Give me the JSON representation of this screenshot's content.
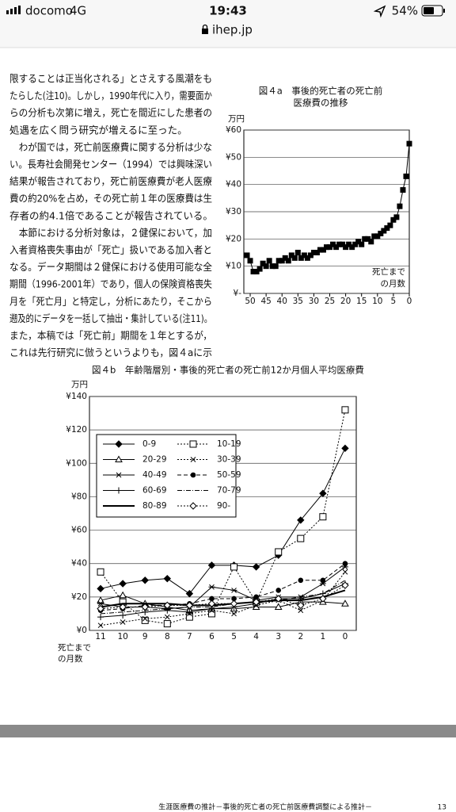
{
  "status_bar": {
    "carrier": "docomo",
    "network": "4G",
    "time": "19:43",
    "battery": "54%",
    "url": "ihep.jp"
  },
  "body": {
    "lines": [
      "限することは正当化される」とさえする風潮をも",
      "たらした(注10)。しかし，1990年代に入り，需要面か",
      "らの分析も次第に増え，死亡を間近にした患者の",
      "処遇を広く問う研究が増えるに至った。",
      "　わが国では，死亡前医療費に関する分析は少な",
      "い。長寿社会開発センター（1994）では興味深い",
      "結果が報告されており，死亡前医療費が老人医療",
      "費の約20%を占め，その死亡前１年の医療費は生",
      "存者の約4.1倍であることが報告されている。",
      "　本節における分析対象は，２健保において，加",
      "入者資格喪失事由が「死亡」扱いである加入者と",
      "なる。データ期間は２健保における使用可能な全",
      "期間（1996-2001年）であり，個人の保険資格喪失",
      "月を「死亡月」と特定し，分析にあたり，そこから",
      "遡及的にデータを一括して抽出・集計している(注11)。",
      "また，本稿では「死亡前」期間を１年とするが，",
      "これは先行研究に倣うというよりも，図４aに示"
    ]
  },
  "chart_data": [
    {
      "type": "line",
      "title": [
        "図４a　事後的死亡者の死亡前",
        "医療費の推移"
      ],
      "y_unit": "万円",
      "annotation": [
        "死亡まで",
        "の月数"
      ],
      "x": [
        51,
        50,
        49,
        48,
        47,
        46,
        45,
        44,
        43,
        42,
        41,
        40,
        39,
        38,
        37,
        36,
        35,
        34,
        33,
        32,
        31,
        30,
        29,
        28,
        27,
        26,
        25,
        24,
        23,
        22,
        21,
        20,
        19,
        18,
        17,
        16,
        15,
        14,
        13,
        12,
        11,
        10,
        9,
        8,
        7,
        6,
        5,
        4,
        3,
        2,
        1,
        0
      ],
      "values": [
        14,
        12,
        8,
        8,
        9,
        11,
        10,
        12,
        10,
        10,
        12,
        12,
        13,
        12,
        14,
        13,
        15,
        13,
        14,
        13,
        14,
        15,
        15,
        16,
        16,
        17,
        17,
        18,
        17,
        18,
        18,
        17,
        18,
        17,
        18,
        19,
        18,
        20,
        20,
        19,
        21,
        21,
        22,
        23,
        24,
        25,
        27,
        28,
        32,
        38,
        43,
        55
      ],
      "color": "#000000",
      "marker": "square-filled",
      "xlim": [
        52,
        0
      ],
      "xticks": [
        50,
        45,
        40,
        35,
        30,
        25,
        20,
        15,
        10,
        5,
        0
      ],
      "ylim": [
        0,
        60
      ],
      "yticks": [
        {
          "value": 0,
          "label": "¥-"
        },
        {
          "value": 10,
          "label": "¥10"
        },
        {
          "value": 20,
          "label": "¥20"
        },
        {
          "value": 30,
          "label": "¥30"
        },
        {
          "value": 40,
          "label": "¥40"
        },
        {
          "value": 50,
          "label": "¥50"
        },
        {
          "value": 60,
          "label": "¥60"
        }
      ],
      "grid": true
    },
    {
      "type": "line",
      "title": "図４b　年齢階層別・事後的死亡者の死亡前12か月個人平均医療費",
      "y_unit": "万円",
      "annotation": [
        "死亡まで",
        "の月数"
      ],
      "categories": [
        "11",
        "10",
        "9",
        "8",
        "7",
        "6",
        "5",
        "4",
        "3",
        "2",
        "1",
        "0"
      ],
      "ylim": [
        0,
        140
      ],
      "yticks": [
        {
          "value": 0,
          "label": "¥0"
        },
        {
          "value": 20,
          "label": "¥20"
        },
        {
          "value": 40,
          "label": "¥40"
        },
        {
          "value": 60,
          "label": "¥60"
        },
        {
          "value": 80,
          "label": "¥80"
        },
        {
          "value": 100,
          "label": "¥100"
        },
        {
          "value": 120,
          "label": "¥120"
        },
        {
          "value": 140,
          "label": "¥140"
        }
      ],
      "grid": true,
      "series": [
        {
          "name": "0-9",
          "color": "#000000",
          "dash": "solid",
          "marker": "diamond-filled",
          "values": [
            25,
            28,
            30,
            31,
            22,
            39,
            39,
            38,
            45,
            66,
            82,
            109
          ]
        },
        {
          "name": "10-19",
          "color": "#000000",
          "dash": "dotted",
          "marker": "square-open",
          "values": [
            35,
            17,
            6,
            4,
            8,
            10,
            38,
            17,
            47,
            55,
            68,
            132
          ]
        },
        {
          "name": "20-29",
          "color": "#000000",
          "dash": "solid",
          "marker": "triangle-open",
          "values": [
            18,
            21,
            16,
            14,
            12,
            13,
            13,
            14,
            14,
            17,
            17,
            16
          ]
        },
        {
          "name": "30-39",
          "color": "#000000",
          "dash": "dotted",
          "marker": "x",
          "values": [
            3,
            5,
            7,
            8,
            10,
            12,
            10,
            15,
            18,
            12,
            18,
            35
          ]
        },
        {
          "name": "40-49",
          "color": "#000000",
          "dash": "solid",
          "marker": "asterisk",
          "values": [
            16,
            14,
            14,
            13,
            14,
            26,
            24,
            18,
            20,
            20,
            28,
            38
          ]
        },
        {
          "name": "50-59",
          "color": "#000000",
          "dash": "dashed",
          "marker": "circle-filled",
          "values": [
            12,
            13,
            15,
            15,
            16,
            19,
            19,
            20,
            24,
            30,
            30,
            40
          ]
        },
        {
          "name": "60-69",
          "color": "#000000",
          "dash": "solid",
          "marker": "plus",
          "values": [
            8,
            9,
            11,
            12,
            11,
            13,
            14,
            16,
            19,
            19,
            22,
            28
          ]
        },
        {
          "name": "70-79",
          "color": "#000000",
          "dash": "dashdot",
          "marker": "none",
          "values": [
            10,
            11,
            12,
            13,
            14,
            14,
            16,
            17,
            18,
            20,
            22,
            30
          ]
        },
        {
          "name": "80-89",
          "color": "#000000",
          "dash": "thick",
          "marker": "none",
          "values": [
            14,
            16,
            16,
            16,
            15,
            15,
            16,
            17,
            18,
            18,
            20,
            24
          ]
        },
        {
          "name": "90-",
          "color": "#000000",
          "dash": "dotted",
          "marker": "diamond-open",
          "values": [
            13,
            14,
            14,
            15,
            15,
            16,
            16,
            17,
            19,
            15,
            19,
            27
          ]
        }
      ]
    }
  ],
  "footer": {
    "text": "生涯医療費の推計－事後的死亡者の死亡前医療費調整による推計－",
    "page": "13"
  }
}
